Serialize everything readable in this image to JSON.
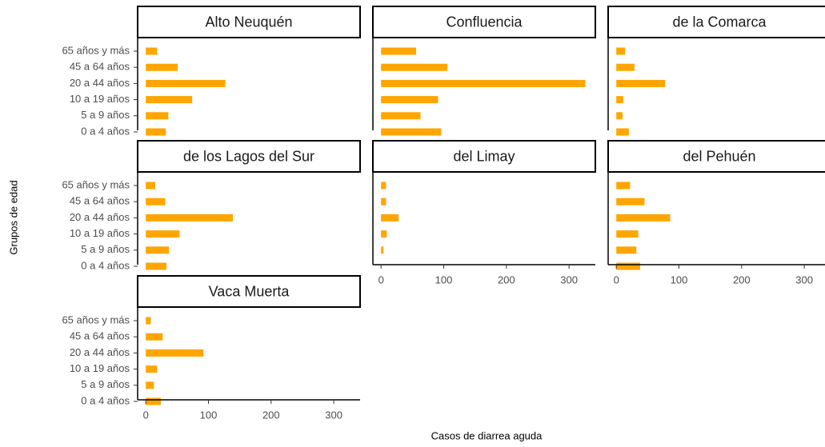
{
  "chart_data": {
    "type": "bar",
    "orientation": "horizontal",
    "xlabel": "Casos de diarrea aguda",
    "ylabel": "Grupos de edad",
    "categories": [
      "65 años y más",
      "45 a 64 años",
      "20 a 44 años",
      "10 a 19 años",
      "5 a 9 años",
      "0 a 4 años"
    ],
    "color": "#FFA500",
    "xlim": [
      -13,
      342
    ],
    "xticks": [
      0,
      100,
      200,
      300
    ],
    "facets": [
      {
        "name": "Alto Neuquén",
        "values": [
          18,
          51,
          127,
          74,
          36,
          32
        ]
      },
      {
        "name": "Confluencia",
        "values": [
          56,
          106,
          326,
          91,
          63,
          96
        ]
      },
      {
        "name": "de la Comarca",
        "values": [
          14,
          29,
          78,
          11,
          10,
          20
        ]
      },
      {
        "name": "de los Lagos del Sur",
        "values": [
          15,
          31,
          139,
          54,
          37,
          33
        ]
      },
      {
        "name": "del Limay",
        "values": [
          8,
          8,
          28,
          9,
          4,
          0
        ]
      },
      {
        "name": "del Pehuén",
        "values": [
          22,
          45,
          86,
          35,
          32,
          38
        ]
      },
      {
        "name": "Vaca Muerta",
        "values": [
          8,
          27,
          92,
          18,
          13,
          24
        ]
      }
    ]
  }
}
